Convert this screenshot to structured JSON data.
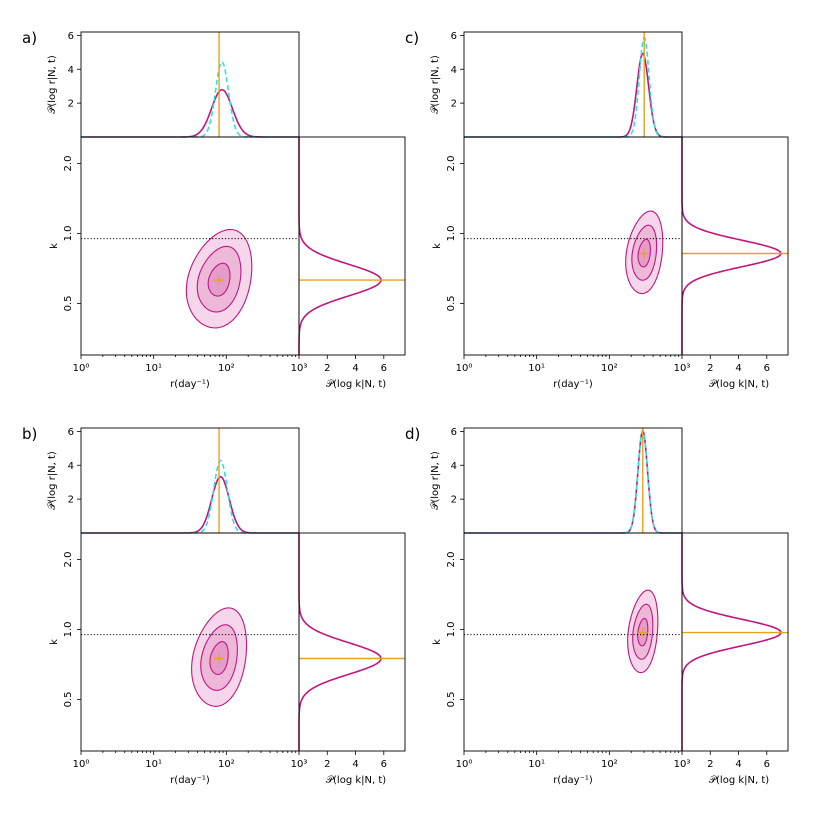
{
  "figure": {
    "colors": {
      "magenta": "#c0177f",
      "cyan": "#2ee3dc",
      "orange": "#e8a020",
      "fill_light": "#f5d6ea",
      "fill_mid": "#eeb8d8",
      "fill_dark": "#e59ccb"
    }
  },
  "chart_data": [
    {
      "panel_label": "a)",
      "type": "corner-posterior",
      "top_marginal": {
        "ylabel": "𝒫(log r|N, t)",
        "yticks": [
          "2",
          "4",
          "6"
        ],
        "ylim": [
          0,
          6.2
        ],
        "magenta": {
          "mean_log10r": 1.94,
          "sd": 0.143
        },
        "cyan_dashed": {
          "mean_log10r": 1.94,
          "sd": 0.09
        },
        "true_log10r": 1.9
      },
      "joint": {
        "xlabel": "r(day⁻¹)",
        "ylabel": "k",
        "xticks": [
          "10⁰",
          "10¹",
          "10²",
          "10³"
        ],
        "xlim_log10": [
          0,
          3
        ],
        "yticks": [
          "0.5",
          "1.0",
          "2.0"
        ],
        "ylim": [
          0.3,
          2.6
        ],
        "dotted_k": 0.95,
        "posterior_peak": {
          "log10r": 1.9,
          "k": 0.63
        }
      },
      "right_marginal": {
        "xlabel": "𝒫(log k|N, t)",
        "xticks": [
          "2",
          "4",
          "6"
        ],
        "xlim": [
          0,
          7.5
        ],
        "peak": 5.8,
        "sd_log10k": 0.068,
        "true_k": 0.63
      }
    },
    {
      "panel_label": "b)",
      "type": "corner-posterior",
      "top_marginal": {
        "ylabel": "𝒫(log r|N, t)",
        "yticks": [
          "2",
          "4",
          "6"
        ],
        "ylim": [
          0,
          6.2
        ],
        "magenta": {
          "mean_log10r": 1.92,
          "sd": 0.12
        },
        "cyan_dashed": {
          "mean_log10r": 1.92,
          "sd": 0.093
        },
        "true_log10r": 1.9
      },
      "joint": {
        "xlabel": "r(day⁻¹)",
        "ylabel": "k",
        "xticks": [
          "10⁰",
          "10¹",
          "10²",
          "10³"
        ],
        "xlim_log10": [
          0,
          3
        ],
        "yticks": [
          "0.5",
          "1.0",
          "2.0"
        ],
        "ylim": [
          0.3,
          2.6
        ],
        "dotted_k": 0.95,
        "posterior_peak": {
          "log10r": 1.9,
          "k": 0.75
        }
      },
      "right_marginal": {
        "xlabel": "𝒫(log k|N, t)",
        "xticks": [
          "2",
          "4",
          "6"
        ],
        "xlim": [
          0,
          7.5
        ],
        "peak": 5.8,
        "sd_log10k": 0.068,
        "true_k": 0.75
      }
    },
    {
      "panel_label": "c)",
      "type": "corner-posterior",
      "top_marginal": {
        "ylabel": "𝒫(log r|N, t)",
        "yticks": [
          "2",
          "4",
          "6"
        ],
        "ylim": [
          0,
          6.2
        ],
        "magenta": {
          "mean_log10r": 2.46,
          "sd": 0.081
        },
        "cyan_dashed": {
          "mean_log10r": 2.48,
          "sd": 0.068
        },
        "true_log10r": 2.48
      },
      "joint": {
        "xlabel": "r(day⁻¹)",
        "ylabel": "k",
        "xticks": [
          "10⁰",
          "10¹",
          "10²",
          "10³"
        ],
        "xlim_log10": [
          0,
          3
        ],
        "yticks": [
          "0.5",
          "1.0",
          "2.0"
        ],
        "ylim": [
          0.3,
          2.6
        ],
        "dotted_k": 0.95,
        "posterior_peak": {
          "log10r": 2.48,
          "k": 0.82
        }
      },
      "right_marginal": {
        "xlabel": "𝒫(log k|N, t)",
        "xticks": [
          "2",
          "4",
          "6"
        ],
        "xlim": [
          0,
          7.5
        ],
        "peak": 7.0,
        "sd_log10k": 0.057,
        "true_k": 0.82
      }
    },
    {
      "panel_label": "d)",
      "type": "corner-posterior",
      "top_marginal": {
        "ylabel": "𝒫(log r|N, t)",
        "yticks": [
          "2",
          "4",
          "6"
        ],
        "ylim": [
          0,
          6.2
        ],
        "magenta": {
          "mean_log10r": 2.46,
          "sd": 0.066
        },
        "cyan_dashed": {
          "mean_log10r": 2.46,
          "sd": 0.066
        },
        "true_log10r": 2.46
      },
      "joint": {
        "xlabel": "r(day⁻¹)",
        "ylabel": "k",
        "xticks": [
          "10⁰",
          "10¹",
          "10²",
          "10³"
        ],
        "xlim_log10": [
          0,
          3
        ],
        "yticks": [
          "0.5",
          "1.0",
          "2.0"
        ],
        "ylim": [
          0.3,
          2.6
        ],
        "dotted_k": 0.95,
        "posterior_peak": {
          "log10r": 2.46,
          "k": 0.97
        }
      },
      "right_marginal": {
        "xlabel": "𝒫(log k|N, t)",
        "xticks": [
          "2",
          "4",
          "6"
        ],
        "xlim": [
          0,
          7.5
        ],
        "peak": 7.0,
        "sd_log10k": 0.057,
        "true_k": 0.97
      }
    }
  ]
}
